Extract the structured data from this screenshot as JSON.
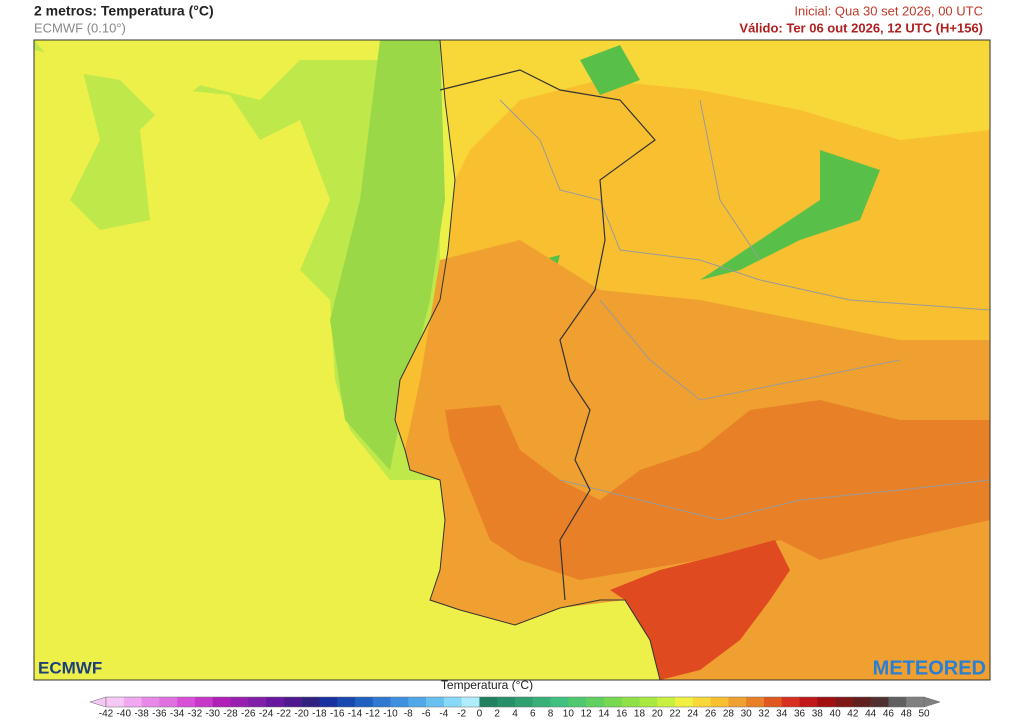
{
  "header": {
    "title": "2 metros: Temperatura (°C)",
    "model": "ECMWF (0.10°)",
    "initial": "Inicial: Qua 30 set 2026, 00 UTC",
    "valid": "Válido: Ter 06 out 2026, 12 UTC (H+156)"
  },
  "logos": {
    "left": "ECMWF",
    "right": "METEORED"
  },
  "legend": {
    "title": "Temperatura (°C)",
    "ticks": [
      -42,
      -40,
      -38,
      -36,
      -34,
      -32,
      -30,
      -28,
      -26,
      -24,
      -22,
      -20,
      -18,
      -16,
      -14,
      -12,
      -10,
      -8,
      -6,
      -4,
      -2,
      0,
      2,
      4,
      6,
      8,
      10,
      12,
      14,
      16,
      18,
      20,
      22,
      24,
      26,
      28,
      30,
      32,
      34,
      36,
      38,
      40,
      42,
      44,
      46,
      48,
      50
    ],
    "colors": [
      "#f5c8f5",
      "#f0a8f0",
      "#e888e8",
      "#e070e0",
      "#d850d8",
      "#c838c8",
      "#b020b8",
      "#9820b0",
      "#8020a8",
      "#6818a0",
      "#501890",
      "#302080",
      "#1830a0",
      "#1848b0",
      "#2060c0",
      "#3078d0",
      "#4090e0",
      "#50a8e8",
      "#68c0f0",
      "#88d8f8",
      "#b0ecfc",
      "#208060",
      "#289068",
      "#30a070",
      "#38b078",
      "#40c080",
      "#50c870",
      "#60d060",
      "#78d850",
      "#90e048",
      "#a8e840",
      "#c8f040",
      "#f0f040",
      "#f8d838",
      "#f8c030",
      "#f0a030",
      "#e88028",
      "#e05820",
      "#d83020",
      "#c01818",
      "#a01010",
      "#801818",
      "#602020",
      "#503030",
      "#606060",
      "#808080"
    ]
  }
}
